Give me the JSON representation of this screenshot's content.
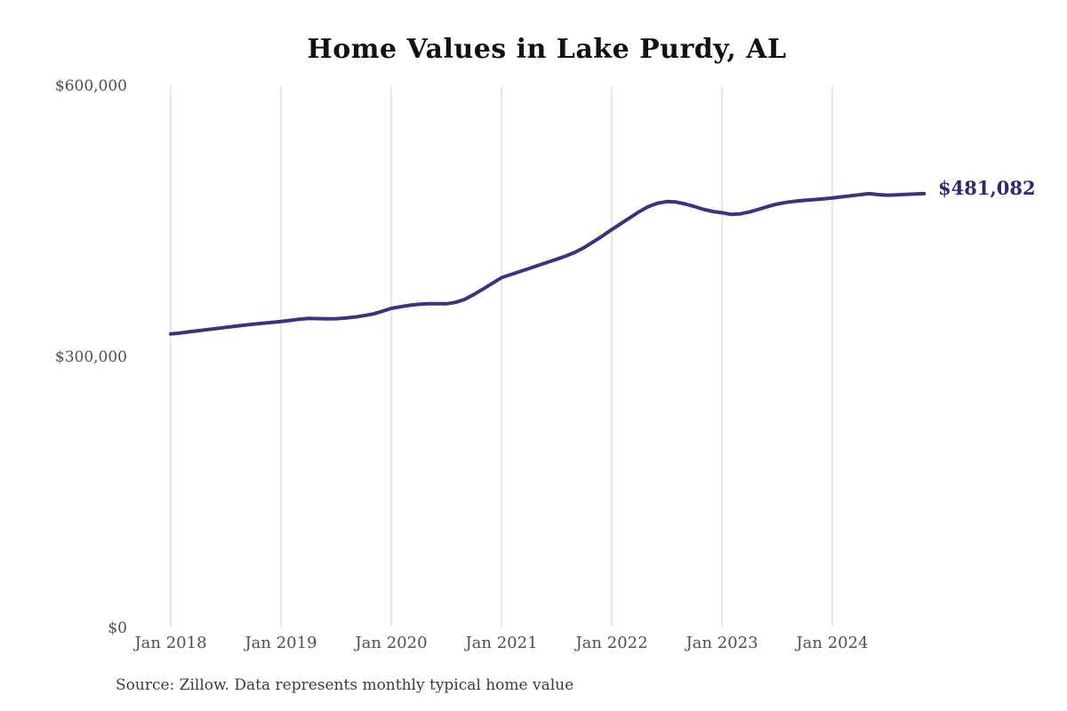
{
  "page": {
    "background": "#ffffff"
  },
  "chart": {
    "title": "Home Values in Lake Purdy, AL",
    "end_value_label": "$481,082",
    "source_note": "Source: Zillow. Data represents monthly typical home value"
  },
  "chart_data": {
    "type": "line",
    "title": "Home Values in Lake Purdy, AL",
    "series_name": "Monthly typical home value",
    "x_start": "2018-01",
    "x_end": "2024-11",
    "x_tick_labels": [
      "Jan 2018",
      "Jan 2019",
      "Jan 2020",
      "Jan 2021",
      "Jan 2022",
      "Jan 2023",
      "Jan 2024"
    ],
    "y_ticks": [
      {
        "label": "$600,000",
        "value": 600000
      },
      {
        "label": "$300,000",
        "value": 300000
      },
      {
        "label": "$0",
        "value": 0
      }
    ],
    "ylim": [
      0,
      600000
    ],
    "grid": "vertical-only",
    "legend": "none",
    "annotation_last_value": 481082,
    "line_color": "#3a347d",
    "annotation_color": "#2b2a6b",
    "grid_color": "#cfcfcf",
    "axis_label_color": "#4f4f4f",
    "values": [
      325800,
      326900,
      328100,
      329400,
      330700,
      331900,
      333100,
      334300,
      335500,
      336600,
      337700,
      338700,
      339600,
      340800,
      342100,
      343000,
      342800,
      342500,
      342700,
      343400,
      344500,
      346000,
      347800,
      350900,
      354100,
      355900,
      357500,
      358600,
      359200,
      359300,
      359200,
      360800,
      364000,
      369500,
      375500,
      381800,
      388100,
      391500,
      394900,
      398300,
      401700,
      405100,
      408500,
      412000,
      416200,
      421500,
      427800,
      434400,
      441300,
      447900,
      454600,
      461200,
      466800,
      470600,
      472300,
      471800,
      469700,
      466800,
      463700,
      461300,
      459900,
      458200,
      458800,
      460900,
      463800,
      466900,
      469600,
      471400,
      472700,
      473700,
      474500,
      475400,
      476400,
      477500,
      478700,
      479900,
      481100,
      480000,
      479400,
      479800,
      480300,
      480700,
      481082
    ]
  }
}
